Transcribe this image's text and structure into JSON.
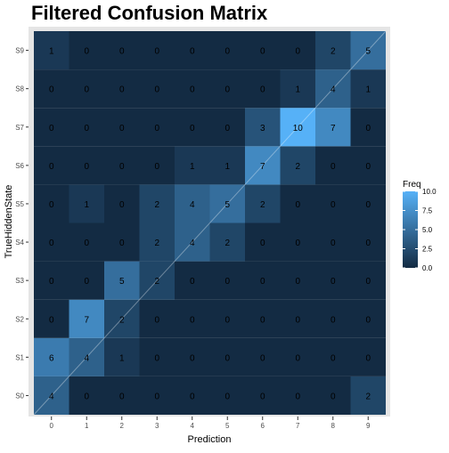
{
  "chart_data": {
    "type": "heatmap",
    "title": "Filtered Confusion Matrix",
    "xlabel": "Prediction",
    "ylabel": "TrueHiddenState",
    "x_categories": [
      "0",
      "1",
      "2",
      "3",
      "4",
      "5",
      "6",
      "7",
      "8",
      "9"
    ],
    "y_categories": [
      "S0",
      "S1",
      "S2",
      "S3",
      "S4",
      "S5",
      "S6",
      "S7",
      "S8",
      "S9"
    ],
    "matrix": [
      [
        4,
        0,
        0,
        0,
        0,
        0,
        0,
        0,
        0,
        2
      ],
      [
        6,
        4,
        1,
        0,
        0,
        0,
        0,
        0,
        0,
        0
      ],
      [
        0,
        7,
        2,
        0,
        0,
        0,
        0,
        0,
        0,
        0
      ],
      [
        0,
        0,
        5,
        2,
        0,
        0,
        0,
        0,
        0,
        0
      ],
      [
        0,
        0,
        0,
        2,
        4,
        2,
        0,
        0,
        0,
        0
      ],
      [
        0,
        1,
        0,
        2,
        4,
        5,
        2,
        0,
        0,
        0
      ],
      [
        0,
        0,
        0,
        0,
        1,
        1,
        7,
        2,
        0,
        0
      ],
      [
        0,
        0,
        0,
        0,
        0,
        0,
        3,
        10,
        7,
        0
      ],
      [
        0,
        0,
        0,
        0,
        0,
        0,
        0,
        1,
        4,
        1
      ],
      [
        1,
        0,
        0,
        0,
        0,
        0,
        0,
        0,
        2,
        5
      ]
    ],
    "legend": {
      "title": "Freq",
      "ticks": [
        "10.0",
        "7.5",
        "5.0",
        "2.5",
        "0.0"
      ],
      "tick_values": [
        10,
        7.5,
        5,
        2.5,
        0
      ],
      "range": [
        0,
        10
      ],
      "low_color": "#132b43",
      "high_color": "#56b1f7",
      "placement": "right"
    },
    "diagonal_line": true,
    "grid": false
  }
}
